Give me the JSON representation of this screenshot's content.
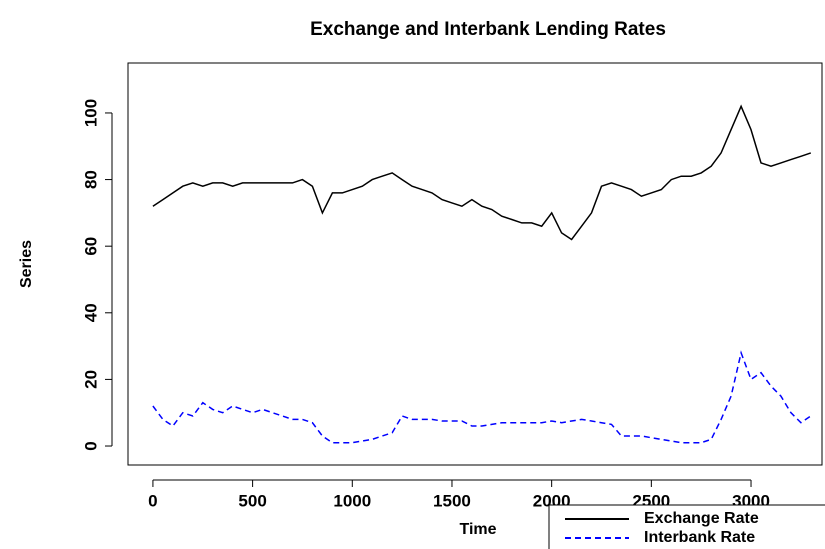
{
  "chart_data": {
    "type": "line",
    "title": "Exchange and Interbank Lending Rates",
    "xlabel": "Time",
    "ylabel": "Series",
    "x": [
      0,
      50,
      100,
      150,
      200,
      250,
      300,
      350,
      400,
      450,
      500,
      550,
      600,
      650,
      700,
      750,
      800,
      850,
      900,
      950,
      1000,
      1050,
      1100,
      1150,
      1200,
      1250,
      1300,
      1350,
      1400,
      1450,
      1500,
      1550,
      1600,
      1650,
      1700,
      1750,
      1800,
      1850,
      1900,
      1950,
      2000,
      2050,
      2100,
      2150,
      2200,
      2250,
      2300,
      2350,
      2400,
      2450,
      2500,
      2550,
      2600,
      2650,
      2700,
      2750,
      2800,
      2850,
      2900,
      2950,
      3000,
      3050,
      3100,
      3150,
      3200,
      3250,
      3300
    ],
    "series": [
      {
        "name": "Exchange Rate",
        "color": "#000000",
        "linestyle": "solid",
        "values": [
          72,
          74,
          76,
          78,
          79,
          78,
          79,
          79,
          78,
          79,
          79,
          79,
          79,
          79,
          79,
          80,
          78,
          70,
          76,
          76,
          77,
          78,
          80,
          81,
          82,
          80,
          78,
          77,
          76,
          74,
          73,
          72,
          74,
          72,
          71,
          69,
          68,
          67,
          67,
          66,
          70,
          64,
          62,
          66,
          70,
          78,
          79,
          78,
          77,
          75,
          76,
          77,
          80,
          81,
          81,
          82,
          84,
          88,
          95,
          102,
          95,
          85,
          84,
          85,
          86,
          87,
          88
        ]
      },
      {
        "name": "Interbank Rate",
        "color": "#0000ff",
        "linestyle": "dashed",
        "values": [
          12,
          8,
          6,
          10,
          9,
          13,
          11,
          10,
          12,
          11,
          10,
          11,
          10,
          9,
          8,
          8,
          7,
          3,
          1,
          1,
          1,
          1.5,
          2,
          3,
          4,
          9,
          8,
          8,
          8,
          7.5,
          7.5,
          7.5,
          6,
          6,
          6.5,
          7,
          7,
          7,
          7,
          7,
          7.5,
          7,
          7.5,
          8,
          7.5,
          7,
          6.5,
          3,
          3,
          3,
          2.5,
          2,
          1.5,
          1,
          1,
          1,
          2,
          8,
          15,
          28,
          20,
          22,
          18,
          15,
          10,
          7,
          9
        ]
      }
    ],
    "xlim": [
      -125,
      3356
    ],
    "xticks": [
      0,
      500,
      1000,
      1500,
      2000,
      2500,
      3000
    ],
    "ylim": [
      -5.7,
      115
    ],
    "yticks": [
      0,
      20,
      40,
      60,
      80,
      100
    ],
    "legend": "bottom-right"
  }
}
